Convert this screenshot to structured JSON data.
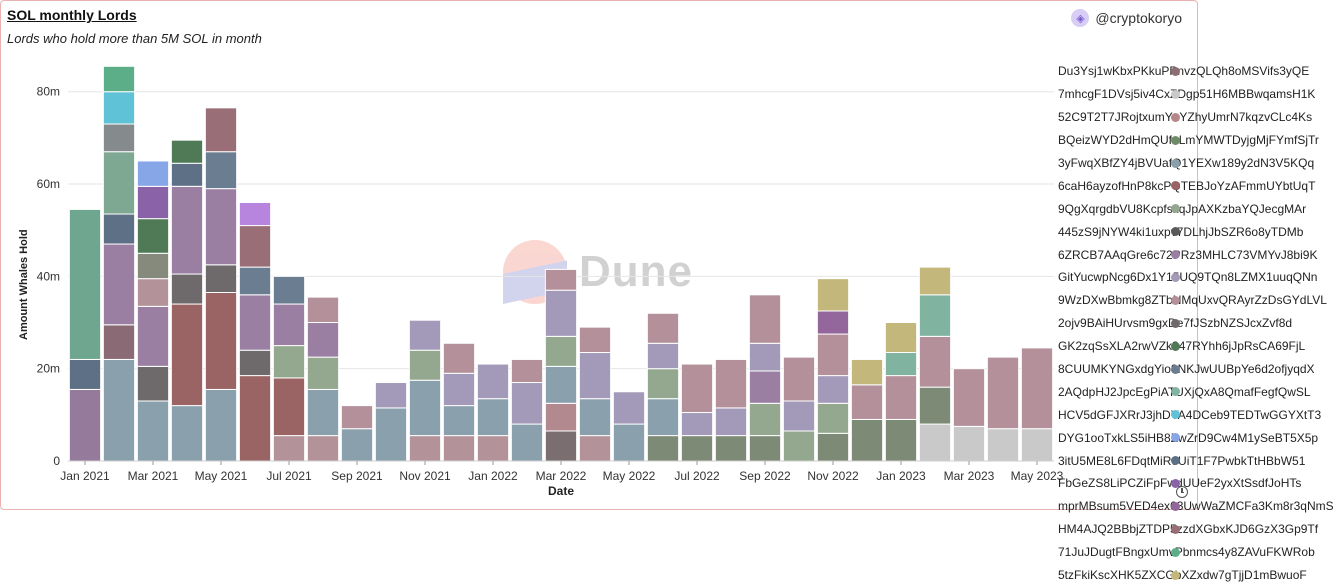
{
  "header": {
    "title": "SOL monthly Lords",
    "subtitle": "Lords who hold more than 5M SOL in month",
    "author": "@cryptokoryo"
  },
  "watermark": {
    "text": "Dune"
  },
  "chart_data": {
    "type": "bar",
    "stacked": true,
    "xlabel": "Date",
    "ylabel": "Amount Whales Hold",
    "ylim": [
      0,
      86
    ],
    "y_ticks": [
      0,
      20,
      40,
      60,
      80
    ],
    "y_tick_labels": [
      "0",
      "20m",
      "40m",
      "60m",
      "80m"
    ],
    "x_tick_labels": [
      "Jan 2021",
      "Mar 2021",
      "May 2021",
      "Jul 2021",
      "Sep 2021",
      "Nov 2021",
      "Jan 2022",
      "Mar 2022",
      "May 2022",
      "Jul 2022",
      "Sep 2022",
      "Nov 2022",
      "Jan 2023",
      "Mar 2023",
      "May 2023"
    ],
    "grid": true,
    "legend_position": "right",
    "categories": [
      "Jan 2021",
      "Feb 2021",
      "Mar 2021",
      "Apr 2021",
      "May 2021",
      "Jun 2021",
      "Jul 2021",
      "Aug 2021",
      "Sep 2021",
      "Oct 2021",
      "Nov 2021",
      "Dec 2021",
      "Jan 2022",
      "Feb 2022",
      "Mar 2022",
      "Apr 2022",
      "May 2022",
      "Jun 2022",
      "Jul 2022",
      "Aug 2022",
      "Sep 2022",
      "Oct 2022",
      "Nov 2022",
      "Dec 2022",
      "Jan 2023",
      "Feb 2023",
      "Mar 2023",
      "Apr 2023",
      "May 2023"
    ],
    "bars": [
      [
        {
          "v": 15.5,
          "c": "#957a9c"
        },
        {
          "v": 6.5,
          "c": "#5e7085"
        },
        {
          "v": 32.5,
          "c": "#6fa68f"
        }
      ],
      [
        {
          "v": 22,
          "c": "#8aa0ad"
        },
        {
          "v": 7.5,
          "c": "#8a6b75"
        },
        {
          "v": 17.5,
          "c": "#9a7fa3"
        },
        {
          "v": 6.5,
          "c": "#5e7085"
        },
        {
          "v": 13.5,
          "c": "#7fa892"
        },
        {
          "v": 6,
          "c": "#858a8c"
        },
        {
          "v": 7,
          "c": "#5fc2d6"
        },
        {
          "v": 5.5,
          "c": "#5cae89"
        }
      ],
      [
        {
          "v": 13,
          "c": "#8aa0ad"
        },
        {
          "v": 7.5,
          "c": "#6e6a6c"
        },
        {
          "v": 13,
          "c": "#9a7fa3"
        },
        {
          "v": 6,
          "c": "#b39299"
        },
        {
          "v": 5.5,
          "c": "#868a7c"
        },
        {
          "v": 7.5,
          "c": "#4f7a55"
        },
        {
          "v": 7,
          "c": "#8a62a8"
        },
        {
          "v": 5.5,
          "c": "#86a6e8"
        }
      ],
      [
        {
          "v": 12,
          "c": "#8aa0ad"
        },
        {
          "v": 22,
          "c": "#9a6464"
        },
        {
          "v": 6.5,
          "c": "#6e6a6c"
        },
        {
          "v": 19,
          "c": "#9a7fa3"
        },
        {
          "v": 5,
          "c": "#5e7085"
        },
        {
          "v": 5,
          "c": "#4f7a55"
        }
      ],
      [
        {
          "v": 15.5,
          "c": "#8aa0ad"
        },
        {
          "v": 21,
          "c": "#9a6464"
        },
        {
          "v": 6,
          "c": "#6e6a6c"
        },
        {
          "v": 16.5,
          "c": "#9a7fa3"
        },
        {
          "v": 8,
          "c": "#6b7d90"
        },
        {
          "v": 9.5,
          "c": "#9a6e76"
        }
      ],
      [
        {
          "v": 18.5,
          "c": "#9a6464"
        },
        {
          "v": 5.5,
          "c": "#6e6a6c"
        },
        {
          "v": 12,
          "c": "#9a7fa3"
        },
        {
          "v": 6,
          "c": "#6b7d90"
        },
        {
          "v": 9,
          "c": "#9a6e76"
        },
        {
          "v": 5,
          "c": "#b784de"
        }
      ],
      [
        {
          "v": 5.5,
          "c": "#b39299"
        },
        {
          "v": 12.5,
          "c": "#9a6464"
        },
        {
          "v": 7,
          "c": "#93a88e"
        },
        {
          "v": 9,
          "c": "#9a7fa3"
        },
        {
          "v": 6,
          "c": "#6b7d90"
        }
      ],
      [
        {
          "v": 5.5,
          "c": "#b39299"
        },
        {
          "v": 10,
          "c": "#8aa0ad"
        },
        {
          "v": 7,
          "c": "#93a88e"
        },
        {
          "v": 7.5,
          "c": "#9a7fa3"
        },
        {
          "v": 5.5,
          "c": "#b3909a"
        }
      ],
      [
        {
          "v": 7,
          "c": "#8aa0ad"
        },
        {
          "v": 5,
          "c": "#b3909a"
        }
      ],
      [
        {
          "v": 11.5,
          "c": "#8aa0ad"
        },
        {
          "v": 5.5,
          "c": "#a29ab8"
        }
      ],
      [
        {
          "v": 5.5,
          "c": "#b39299"
        },
        {
          "v": 12,
          "c": "#8aa0ad"
        },
        {
          "v": 6.5,
          "c": "#93a88e"
        },
        {
          "v": 6.5,
          "c": "#a29ab8"
        }
      ],
      [
        {
          "v": 5.5,
          "c": "#b39299"
        },
        {
          "v": 6.5,
          "c": "#8aa0ad"
        },
        {
          "v": 7,
          "c": "#a29ab8"
        },
        {
          "v": 6.5,
          "c": "#b3909a"
        }
      ],
      [
        {
          "v": 5.5,
          "c": "#b39299"
        },
        {
          "v": 8,
          "c": "#8aa0ad"
        },
        {
          "v": 7.5,
          "c": "#a29ab8"
        }
      ],
      [
        {
          "v": 8,
          "c": "#8aa0ad"
        },
        {
          "v": 9,
          "c": "#a29ab8"
        },
        {
          "v": 5,
          "c": "#b3909a"
        }
      ],
      [
        {
          "v": 6.5,
          "c": "#7a6e70"
        },
        {
          "v": 6,
          "c": "#b38990"
        },
        {
          "v": 8,
          "c": "#8aa0ad"
        },
        {
          "v": 6.5,
          "c": "#93a88e"
        },
        {
          "v": 10,
          "c": "#a29ab8"
        },
        {
          "v": 4.5,
          "c": "#b3909a"
        }
      ],
      [
        {
          "v": 5.5,
          "c": "#b39299"
        },
        {
          "v": 8,
          "c": "#8aa0ad"
        },
        {
          "v": 10,
          "c": "#a29ab8"
        },
        {
          "v": 5.5,
          "c": "#b3909a"
        }
      ],
      [
        {
          "v": 8,
          "c": "#8aa0ad"
        },
        {
          "v": 7,
          "c": "#a29ab8"
        }
      ],
      [
        {
          "v": 5.5,
          "c": "#7d8a75"
        },
        {
          "v": 8,
          "c": "#8aa0ad"
        },
        {
          "v": 6.5,
          "c": "#93a88e"
        },
        {
          "v": 5.5,
          "c": "#a29ab8"
        },
        {
          "v": 6.5,
          "c": "#b3909a"
        }
      ],
      [
        {
          "v": 5.5,
          "c": "#7d8a75"
        },
        {
          "v": 5,
          "c": "#a29ab8"
        },
        {
          "v": 10.5,
          "c": "#b3909a"
        }
      ],
      [
        {
          "v": 5.5,
          "c": "#7d8a75"
        },
        {
          "v": 6,
          "c": "#a29ab8"
        },
        {
          "v": 10.5,
          "c": "#b3909a"
        }
      ],
      [
        {
          "v": 5.5,
          "c": "#7d8a75"
        },
        {
          "v": 7,
          "c": "#93a88e"
        },
        {
          "v": 7,
          "c": "#9a7fa3"
        },
        {
          "v": 6,
          "c": "#a29ab8"
        },
        {
          "v": 10.5,
          "c": "#b3909a"
        }
      ],
      [
        {
          "v": 6.5,
          "c": "#93a88e"
        },
        {
          "v": 6.5,
          "c": "#a29ab8"
        },
        {
          "v": 9.5,
          "c": "#b3909a"
        }
      ],
      [
        {
          "v": 6,
          "c": "#7d8a75"
        },
        {
          "v": 6.5,
          "c": "#93a88e"
        },
        {
          "v": 6,
          "c": "#a29ab8"
        },
        {
          "v": 9,
          "c": "#b3909a"
        },
        {
          "v": 5,
          "c": "#94679c"
        },
        {
          "v": 7,
          "c": "#c3b77c"
        }
      ],
      [
        {
          "v": 9,
          "c": "#7d8a75"
        },
        {
          "v": 7.5,
          "c": "#b3909a"
        },
        {
          "v": 5.5,
          "c": "#c3b77c"
        }
      ],
      [
        {
          "v": 9,
          "c": "#7d8a75"
        },
        {
          "v": 9.5,
          "c": "#b3909a"
        },
        {
          "v": 5,
          "c": "#80b3a0"
        },
        {
          "v": 6.5,
          "c": "#c3b77c"
        }
      ],
      [
        {
          "v": 8,
          "c": "#c9c9c9"
        },
        {
          "v": 8,
          "c": "#7d8a75"
        },
        {
          "v": 11,
          "c": "#b3909a"
        },
        {
          "v": 9,
          "c": "#80b3a0"
        },
        {
          "v": 6,
          "c": "#c3b77c"
        }
      ],
      [
        {
          "v": 7.5,
          "c": "#c9c9c9"
        },
        {
          "v": 12.5,
          "c": "#b3909a"
        }
      ],
      [
        {
          "v": 7,
          "c": "#c9c9c9"
        },
        {
          "v": 15.5,
          "c": "#b3909a"
        }
      ],
      [
        {
          "v": 7,
          "c": "#c9c9c9"
        },
        {
          "v": 17.5,
          "c": "#b3909a"
        }
      ]
    ],
    "series": [
      {
        "name": "Du3Ysj1wKbxPKkuPPnvzQLQh8oMSVifs3yQE",
        "color": "#8d6e74"
      },
      {
        "name": "7mhcgF1DVsj5iv4CxZDgp51H6MBBwqamsH1K",
        "color": "#c9c9c9"
      },
      {
        "name": "52C9T2T7JRojtxumYnYZhyUmrN7kqzvCLc4Ks",
        "color": "#b5868a"
      },
      {
        "name": "BQeizWYD2dHmQUfeLmYMWTDyjgMjFYmfSjTr",
        "color": "#6e8a66"
      },
      {
        "name": "3yFwqXBfZY4jBVUafQ1YEXw189y2dN3V5KQq",
        "color": "#8aa0ad"
      },
      {
        "name": "6caH6ayzofHnP8kcPQTEBJoYzAFmmUYbtUqT",
        "color": "#9a6464"
      },
      {
        "name": "9QgXqrgdbVU8KcpfskqJpAXKzbaYQJecgMAr",
        "color": "#93a88e"
      },
      {
        "name": "445zS9jNYW4ki1uxpv7DLhjJbSZR6o8yTDMb",
        "color": "#5a5a5a"
      },
      {
        "name": "6ZRCB7AAqGre6c72PRz3MHLC73VMYvJ8bi9K",
        "color": "#9a7fa3"
      },
      {
        "name": "GitYucwpNcg6Dx1Y15UQ9TQn8LZMX1uuqQNn",
        "color": "#a29ab8"
      },
      {
        "name": "9WzDXwBbmkg8ZTbNMqUxvQRAyrZzDsGYdLVL",
        "color": "#b3909a"
      },
      {
        "name": "2ojv9BAiHUrvsm9gxDe7fJSzbNZSJcxZvf8d",
        "color": "#6e6a6c"
      },
      {
        "name": "GK2zqSsXLA2rwVZk347RYhh6jJpRsCA69FjL",
        "color": "#4f7a55"
      },
      {
        "name": "8CUUMKYNGxdgYio8NKJwUUBpYe6d2ofjyqdX",
        "color": "#6b7d90"
      },
      {
        "name": "2AQdpHJ2JpcEgPiATUXjQxA8QmafFegfQwSL",
        "color": "#80b3a0"
      },
      {
        "name": "HCV5dGFJXRrJ3jhDYA4DCeb9TEDTwGGYXtT3",
        "color": "#5fc2d6"
      },
      {
        "name": "DYG1ooTxkLS5iHB8ZwZrD9Cw4M1ySeBT5X5p",
        "color": "#86a6e8"
      },
      {
        "name": "3itU5ME8L6FDqtMiRoUiT1F7PwbkTtHBbW51",
        "color": "#5e7085"
      },
      {
        "name": "FbGeZS8LiPCZiFpFwdUUeF2yxXtSsdfJoHTs",
        "color": "#8a62a8"
      },
      {
        "name": "mprMBsum5VED4ex63UwWaZMCFa3Km8r3qNmS",
        "color": "#94679c"
      },
      {
        "name": "HM4AJQ2BBbjZTDP5zzdXGbxKJD6GzX3Gp9Tf",
        "color": "#9a6e76"
      },
      {
        "name": "71JuJDugtFBngxUmvPbnmcs4y8ZAVuFKWRob",
        "color": "#5cae89"
      },
      {
        "name": "5tzFkiKscXHK5ZXCGbXZxdw7gTjjD1mBwuoF",
        "color": "#c3b77c"
      }
    ]
  }
}
